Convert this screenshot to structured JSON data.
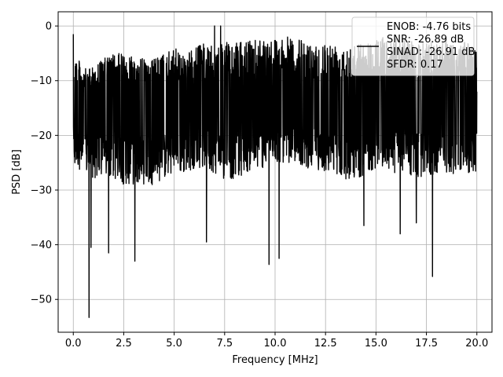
{
  "chart_data": {
    "type": "line",
    "title": "",
    "xlabel": "Frequency [MHz]",
    "ylabel": "PSD [dB]",
    "xlim": [
      -0.75,
      20.75
    ],
    "ylim": [
      -56,
      2.6
    ],
    "x_ticks": [
      0.0,
      2.5,
      5.0,
      7.5,
      10.0,
      12.5,
      15.0,
      17.5,
      20.0
    ],
    "x_tick_labels": [
      "0.0",
      "2.5",
      "5.0",
      "7.5",
      "10.0",
      "12.5",
      "15.0",
      "17.5",
      "20.0"
    ],
    "y_ticks": [
      0,
      -10,
      -20,
      -30,
      -40,
      -50
    ],
    "y_tick_labels": [
      "0",
      "−10",
      "−20",
      "−30",
      "−40",
      "−50"
    ],
    "grid": true,
    "legend": {
      "position": "top-right",
      "entries": [
        "ENOB: -4.76 bits",
        "SNR: -26.89 dB",
        "SINAD: -26.91 dB",
        "SFDR: 0.17"
      ]
    },
    "series": [
      {
        "color": "#000000",
        "x_start": 0.0,
        "x_end": 20.0,
        "x_step": 0.01,
        "upper_envelope": [
          -4,
          -8,
          -7,
          -6,
          -5,
          -5,
          -5,
          -6,
          -6,
          -5,
          -4,
          -5,
          -4,
          -3,
          -4,
          -3,
          -3,
          -3,
          -2,
          -2,
          -2,
          -2,
          -2,
          -3,
          -3,
          -3,
          -3,
          -3,
          -3,
          -3,
          -2,
          -2,
          -2,
          -2,
          -3,
          -3,
          -2,
          -2,
          -3,
          -3,
          -3
        ],
        "lower_envelope": [
          -25,
          -27,
          -28,
          -28,
          -28,
          -29,
          -29,
          -29,
          -29,
          -28,
          -27,
          -27,
          -26,
          -26,
          -27,
          -28,
          -28,
          -27,
          -26,
          -26,
          -25,
          -25,
          -25,
          -26,
          -26,
          -27,
          -27,
          -28,
          -28,
          -27,
          -26,
          -26,
          -27,
          -27,
          -28,
          -28,
          -27,
          -27,
          -27,
          -27,
          -27
        ],
        "mean_level": -14,
        "notable_points": [
          {
            "x": 0.0,
            "y": -1.5
          },
          {
            "x": 0.08,
            "y": -25
          },
          {
            "x": 0.78,
            "y": -53.3
          },
          {
            "x": 0.88,
            "y": -40.5
          },
          {
            "x": 1.75,
            "y": -41.5
          },
          {
            "x": 3.05,
            "y": -43
          },
          {
            "x": 6.6,
            "y": -39.5
          },
          {
            "x": 7.0,
            "y": 0
          },
          {
            "x": 7.3,
            "y": 0
          },
          {
            "x": 9.7,
            "y": -43.6
          },
          {
            "x": 10.2,
            "y": -42.5
          },
          {
            "x": 14.4,
            "y": -36.5
          },
          {
            "x": 16.2,
            "y": -38
          },
          {
            "x": 17.0,
            "y": -36
          },
          {
            "x": 17.8,
            "y": -45.8
          },
          {
            "x": 20.0,
            "y": -12
          }
        ]
      }
    ]
  }
}
